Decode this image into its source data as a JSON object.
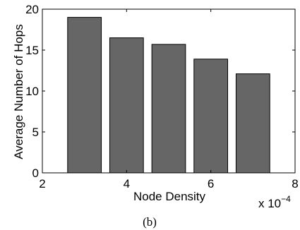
{
  "chart_data": {
    "type": "bar",
    "x": [
      3.0,
      4.0,
      5.0,
      6.0,
      7.0
    ],
    "values": [
      19.0,
      16.5,
      15.7,
      13.9,
      12.1
    ],
    "xlabel": "Node Density",
    "ylabel": "Average Number of Hops",
    "xlim": [
      2,
      8
    ],
    "ylim": [
      0,
      20
    ],
    "x_ticks": [
      "2",
      "4",
      "6",
      "8"
    ],
    "y_ticks": [
      "0",
      "5",
      "10",
      "15",
      "20"
    ],
    "x_multiplier": {
      "base": "x 10",
      "exponent": "−4"
    },
    "bar_color": "#666666",
    "grid": false,
    "legend": "none"
  },
  "caption": "(b)"
}
